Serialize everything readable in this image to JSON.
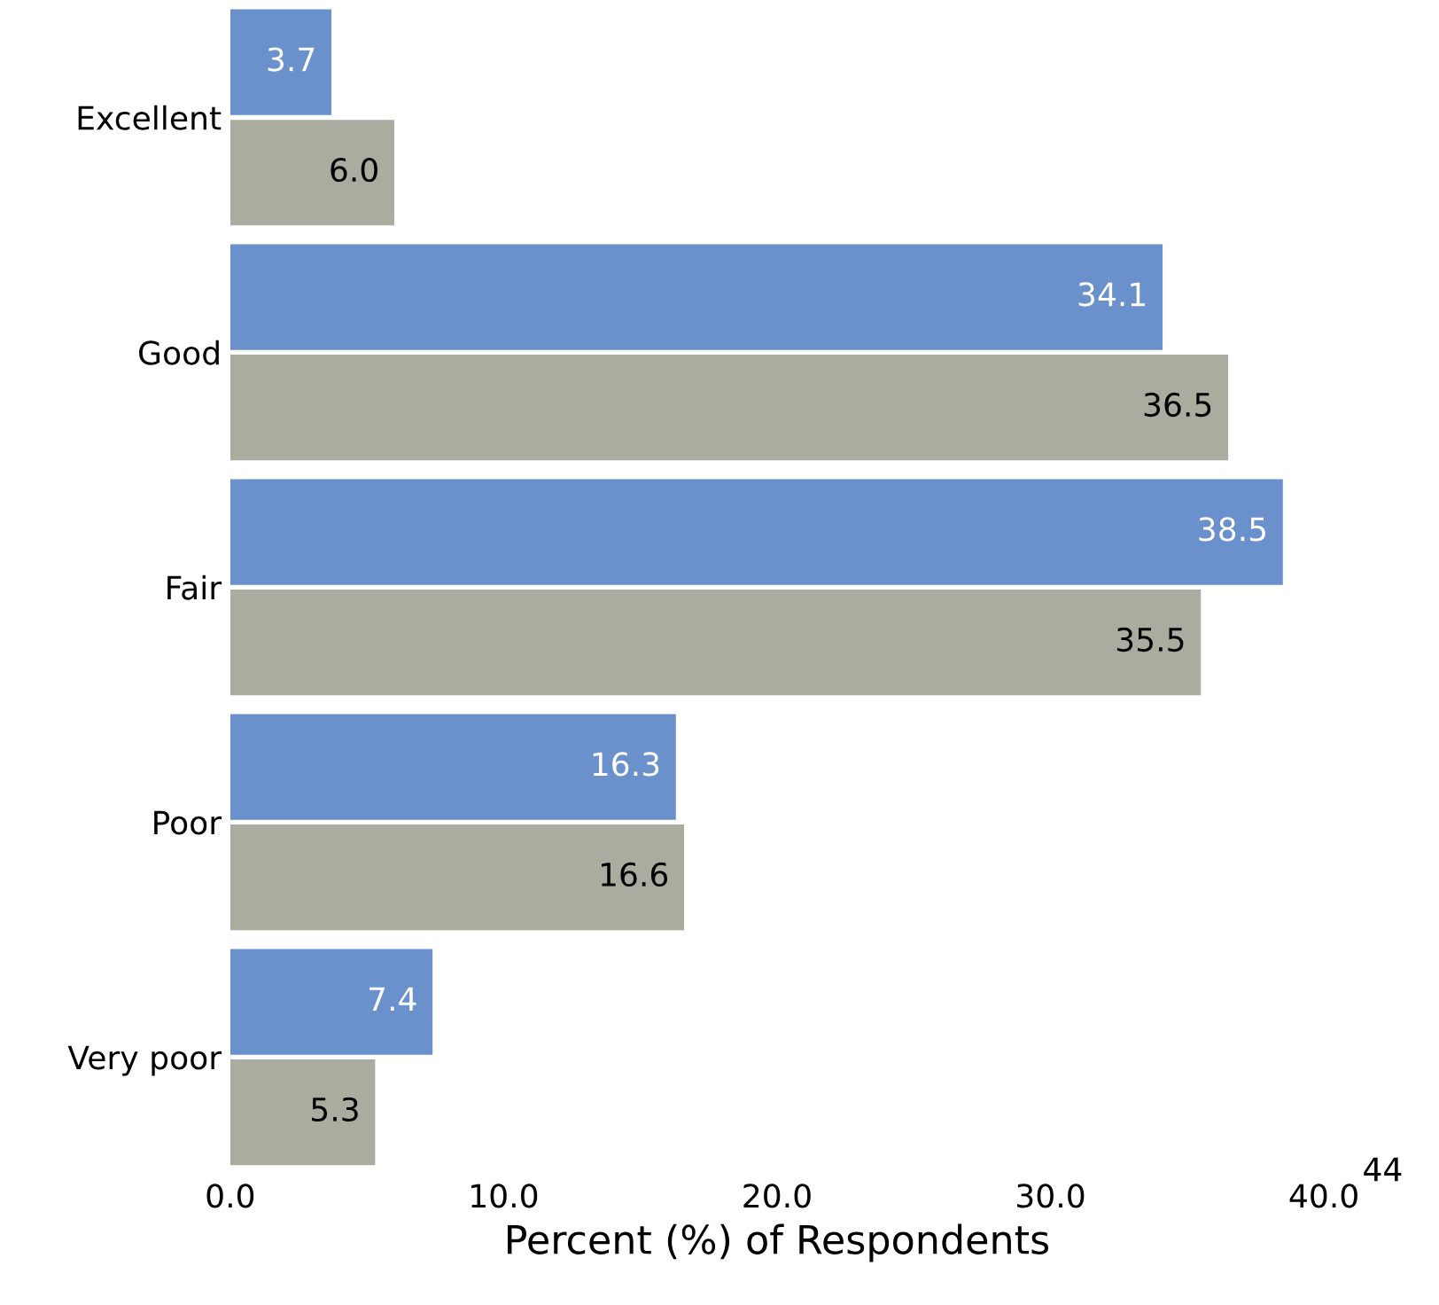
{
  "chart_data": {
    "type": "bar",
    "orientation": "horizontal",
    "xlabel": "Percent (%) of Respondents",
    "categories": [
      "Excellent",
      "Good",
      "Fair",
      "Poor",
      "Very poor"
    ],
    "series": [
      {
        "color": "#6a91cc",
        "values": [
          3.7,
          34.1,
          38.5,
          16.3,
          7.4
        ],
        "value_labels": [
          "3.7",
          "34.1",
          "38.5",
          "16.3",
          "7.4"
        ]
      },
      {
        "color": "#a9ac9f",
        "values": [
          6.0,
          36.5,
          35.5,
          16.6,
          5.3
        ],
        "value_labels": [
          "6.0",
          "36.5",
          "35.5",
          "16.6",
          "5.3"
        ]
      }
    ],
    "xlim": [
      0,
      40
    ],
    "xticks": [
      {
        "value": 0,
        "label": "0.0"
      },
      {
        "value": 10,
        "label": "10.0"
      },
      {
        "value": 20,
        "label": "20.0"
      },
      {
        "value": 30,
        "label": "30.0"
      },
      {
        "value": 40,
        "label": "40.0"
      }
    ],
    "grid": false,
    "legend": false,
    "annotations": [
      "44"
    ]
  }
}
